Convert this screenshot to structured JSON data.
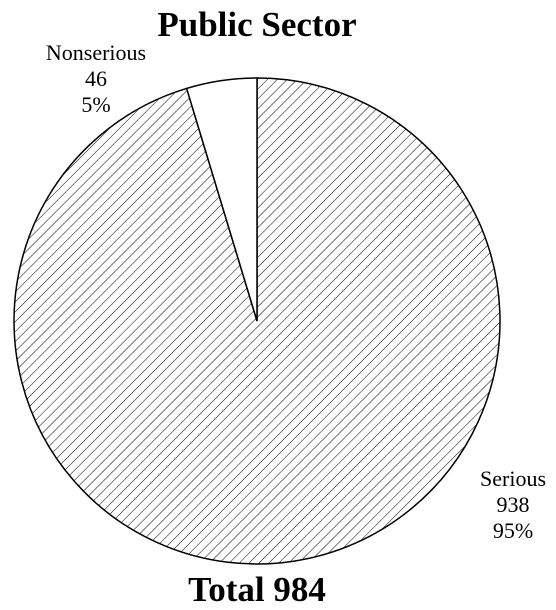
{
  "chart_data": {
    "type": "pie",
    "title": "Public Sector",
    "footer": "Total 984",
    "slices": [
      {
        "name": "Serious",
        "value": 938,
        "percent": "95%",
        "fill": "hatched"
      },
      {
        "name": "Nonserious",
        "value": 46,
        "percent": "5%",
        "fill": "white"
      }
    ],
    "colors": {
      "background": "#ffffff",
      "stroke": "#000000",
      "hatch": "#000000"
    }
  }
}
